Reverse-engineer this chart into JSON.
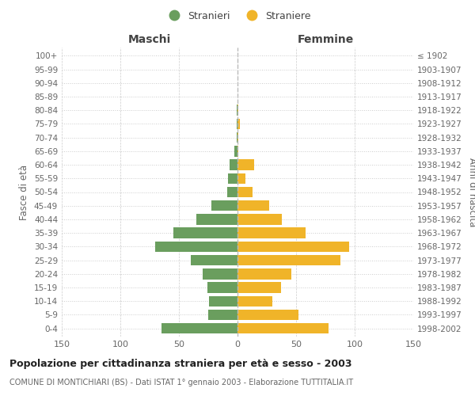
{
  "age_groups": [
    "0-4",
    "5-9",
    "10-14",
    "15-19",
    "20-24",
    "25-29",
    "30-34",
    "35-39",
    "40-44",
    "45-49",
    "50-54",
    "55-59",
    "60-64",
    "65-69",
    "70-74",
    "75-79",
    "80-84",
    "85-89",
    "90-94",
    "95-99",
    "100+"
  ],
  "birth_years": [
    "1998-2002",
    "1993-1997",
    "1988-1992",
    "1983-1987",
    "1978-1982",
    "1973-1977",
    "1968-1972",
    "1963-1967",
    "1958-1962",
    "1953-1957",
    "1948-1952",
    "1943-1947",
    "1938-1942",
    "1933-1937",
    "1928-1932",
    "1923-1927",
    "1918-1922",
    "1913-1917",
    "1908-1912",
    "1903-1907",
    "≤ 1902"
  ],
  "males": [
    65,
    25,
    24,
    26,
    30,
    40,
    70,
    55,
    35,
    22,
    9,
    8,
    7,
    3,
    1,
    1,
    1,
    0,
    0,
    0,
    0
  ],
  "females": [
    78,
    52,
    30,
    37,
    46,
    88,
    95,
    58,
    38,
    27,
    13,
    7,
    14,
    1,
    1,
    2,
    1,
    0,
    0,
    0,
    0
  ],
  "male_color": "#6a9e5e",
  "female_color": "#f0b429",
  "background_color": "#ffffff",
  "grid_color": "#cccccc",
  "title": "Popolazione per cittadinanza straniera per età e sesso - 2003",
  "subtitle": "COMUNE DI MONTICHIARI (BS) - Dati ISTAT 1° gennaio 2003 - Elaborazione TUTTITALIA.IT",
  "xlabel_left": "Maschi",
  "xlabel_right": "Femmine",
  "ylabel_left": "Fasce di età",
  "ylabel_right": "Anni di nascita",
  "legend_males": "Stranieri",
  "legend_females": "Straniere",
  "xlim": 150
}
